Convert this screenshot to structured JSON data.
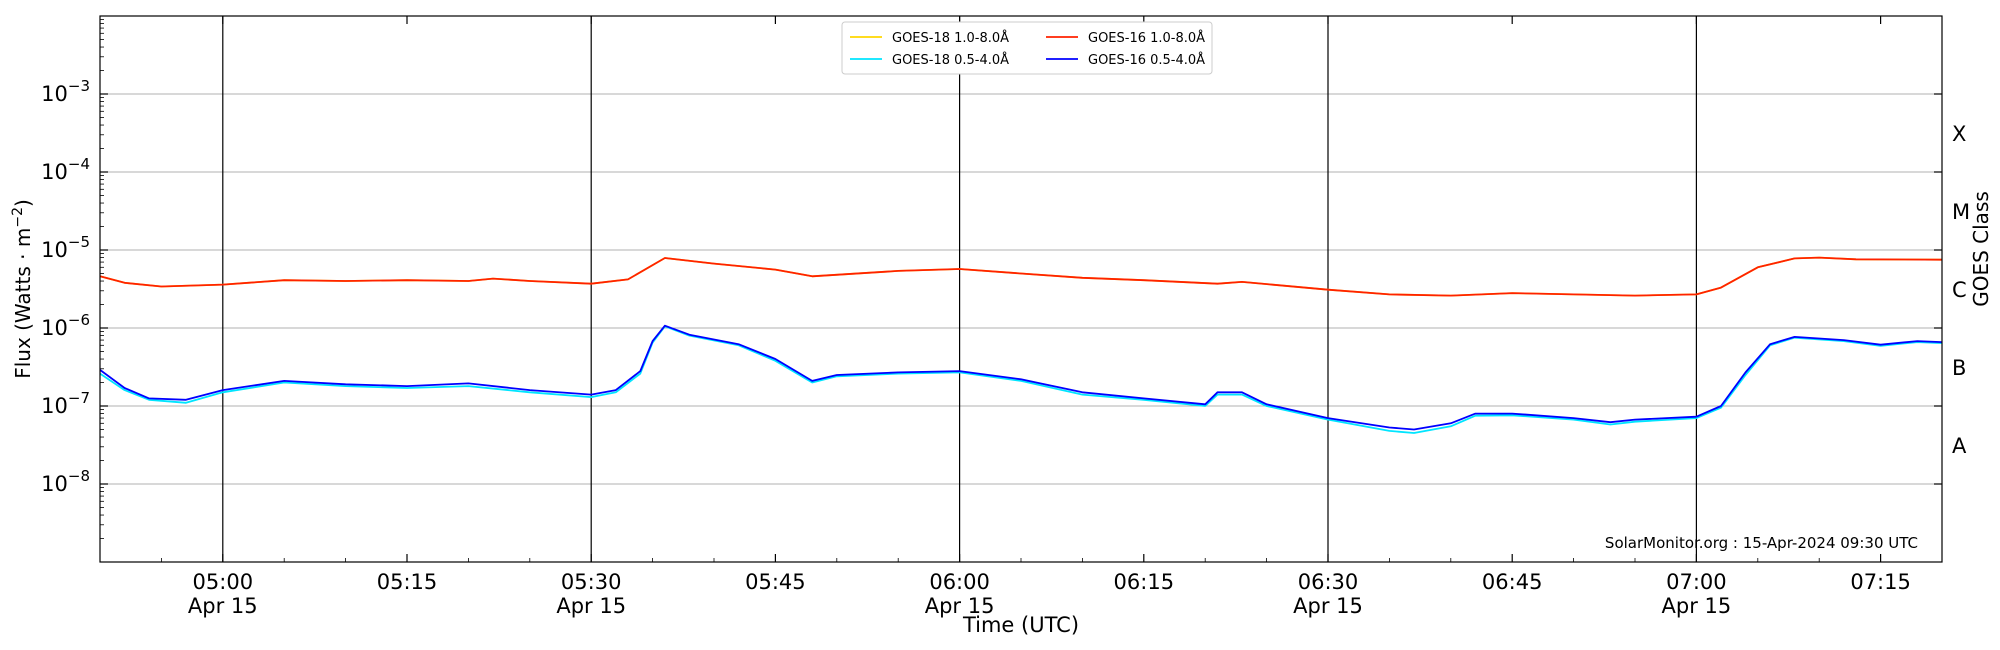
{
  "chart_data": {
    "type": "line",
    "xlabel": "Time (UTC)",
    "ylabel_main": "Flux (Watts · m",
    "ylabel_sup": "−2",
    "ylabel_close": ")",
    "right_label": "GOES Class",
    "x_range": [
      "04:50",
      "07:20"
    ],
    "y_scale": "log",
    "ylim": [
      1e-09,
      0.01
    ],
    "x_ticks": [
      {
        "time": "05:00",
        "label": "05:00",
        "sub": "Apr 15"
      },
      {
        "time": "05:15",
        "label": "05:15",
        "sub": ""
      },
      {
        "time": "05:30",
        "label": "05:30",
        "sub": "Apr 15"
      },
      {
        "time": "05:45",
        "label": "05:45",
        "sub": ""
      },
      {
        "time": "06:00",
        "label": "06:00",
        "sub": "Apr 15"
      },
      {
        "time": "06:15",
        "label": "06:15",
        "sub": ""
      },
      {
        "time": "06:30",
        "label": "06:30",
        "sub": "Apr 15"
      },
      {
        "time": "06:45",
        "label": "06:45",
        "sub": ""
      },
      {
        "time": "07:00",
        "label": "07:00",
        "sub": "Apr 15"
      },
      {
        "time": "07:15",
        "label": "07:15",
        "sub": ""
      }
    ],
    "y_ticks": [
      {
        "value": 0.001,
        "exp": "−3"
      },
      {
        "value": 0.0001,
        "exp": "−4"
      },
      {
        "value": 1e-05,
        "exp": "−5"
      },
      {
        "value": 1e-06,
        "exp": "−6"
      },
      {
        "value": 1e-07,
        "exp": "−7"
      },
      {
        "value": 1e-08,
        "exp": "−8"
      }
    ],
    "y_tick_base": "10",
    "vertical_lines": [
      "05:00",
      "05:30",
      "06:00",
      "06:30",
      "07:00"
    ],
    "goes_classes": [
      {
        "label": "X",
        "value": 0.000316
      },
      {
        "label": "M",
        "value": 3.16e-05
      },
      {
        "label": "C",
        "value": 3.16e-06
      },
      {
        "label": "B",
        "value": 3.16e-07
      },
      {
        "label": "A",
        "value": 3.16e-08
      }
    ],
    "grid": "horizontal",
    "legend_position": "top-center",
    "annotation": "SolarMonitor.org : 15-Apr-2024 09:30 UTC",
    "series": [
      {
        "name": "GOES-18 1.0-8.0Å",
        "color": "#ffd700",
        "points": [
          [
            "04:50",
            4.6e-06
          ],
          [
            "04:52",
            3.8e-06
          ],
          [
            "04:55",
            3.4e-06
          ],
          [
            "05:00",
            3.6e-06
          ],
          [
            "05:05",
            4.1e-06
          ],
          [
            "05:10",
            4e-06
          ],
          [
            "05:15",
            4.1e-06
          ],
          [
            "05:20",
            4e-06
          ],
          [
            "05:22",
            4.3e-06
          ],
          [
            "05:25",
            4e-06
          ],
          [
            "05:30",
            3.7e-06
          ],
          [
            "05:33",
            4.2e-06
          ],
          [
            "05:36",
            7.9e-06
          ],
          [
            "05:40",
            6.7e-06
          ],
          [
            "05:45",
            5.6e-06
          ],
          [
            "05:48",
            4.6e-06
          ],
          [
            "05:55",
            5.4e-06
          ],
          [
            "06:00",
            5.7e-06
          ],
          [
            "06:05",
            5e-06
          ],
          [
            "06:10",
            4.4e-06
          ],
          [
            "06:15",
            4.1e-06
          ],
          [
            "06:21",
            3.7e-06
          ],
          [
            "06:23",
            3.9e-06
          ],
          [
            "06:30",
            3.1e-06
          ],
          [
            "06:35",
            2.7e-06
          ],
          [
            "06:40",
            2.6e-06
          ],
          [
            "06:45",
            2.8e-06
          ],
          [
            "06:50",
            2.7e-06
          ],
          [
            "06:55",
            2.6e-06
          ],
          [
            "07:00",
            2.7e-06
          ],
          [
            "07:02",
            3.3e-06
          ],
          [
            "07:05",
            6e-06
          ],
          [
            "07:08",
            7.8e-06
          ],
          [
            "07:10",
            8e-06
          ],
          [
            "07:13",
            7.6e-06
          ],
          [
            "07:20",
            7.5e-06
          ]
        ]
      },
      {
        "name": "GOES-16 1.0-8.0Å",
        "color": "#ff2200",
        "points": [
          [
            "04:50",
            4.6e-06
          ],
          [
            "04:52",
            3.8e-06
          ],
          [
            "04:55",
            3.4e-06
          ],
          [
            "05:00",
            3.6e-06
          ],
          [
            "05:05",
            4.1e-06
          ],
          [
            "05:10",
            4e-06
          ],
          [
            "05:15",
            4.1e-06
          ],
          [
            "05:20",
            4e-06
          ],
          [
            "05:22",
            4.3e-06
          ],
          [
            "05:25",
            4e-06
          ],
          [
            "05:30",
            3.7e-06
          ],
          [
            "05:33",
            4.2e-06
          ],
          [
            "05:36",
            7.9e-06
          ],
          [
            "05:40",
            6.7e-06
          ],
          [
            "05:45",
            5.6e-06
          ],
          [
            "05:48",
            4.6e-06
          ],
          [
            "05:55",
            5.4e-06
          ],
          [
            "06:00",
            5.7e-06
          ],
          [
            "06:05",
            5e-06
          ],
          [
            "06:10",
            4.4e-06
          ],
          [
            "06:15",
            4.1e-06
          ],
          [
            "06:21",
            3.7e-06
          ],
          [
            "06:23",
            3.9e-06
          ],
          [
            "06:30",
            3.1e-06
          ],
          [
            "06:35",
            2.7e-06
          ],
          [
            "06:40",
            2.6e-06
          ],
          [
            "06:45",
            2.8e-06
          ],
          [
            "06:50",
            2.7e-06
          ],
          [
            "06:55",
            2.6e-06
          ],
          [
            "07:00",
            2.7e-06
          ],
          [
            "07:02",
            3.3e-06
          ],
          [
            "07:05",
            6e-06
          ],
          [
            "07:08",
            7.8e-06
          ],
          [
            "07:10",
            8e-06
          ],
          [
            "07:13",
            7.6e-06
          ],
          [
            "07:20",
            7.5e-06
          ]
        ]
      },
      {
        "name": "GOES-18 0.5-4.0Å",
        "color": "#00e5ff",
        "points": [
          [
            "04:50",
            2.6e-07
          ],
          [
            "04:52",
            1.6e-07
          ],
          [
            "04:54",
            1.2e-07
          ],
          [
            "04:57",
            1.1e-07
          ],
          [
            "05:00",
            1.5e-07
          ],
          [
            "05:05",
            2e-07
          ],
          [
            "05:10",
            1.8e-07
          ],
          [
            "05:15",
            1.7e-07
          ],
          [
            "05:20",
            1.8e-07
          ],
          [
            "05:25",
            1.5e-07
          ],
          [
            "05:30",
            1.3e-07
          ],
          [
            "05:32",
            1.5e-07
          ],
          [
            "05:34",
            2.6e-07
          ],
          [
            "05:35",
            6.5e-07
          ],
          [
            "05:36",
            1.05e-06
          ],
          [
            "05:38",
            8e-07
          ],
          [
            "05:42",
            6e-07
          ],
          [
            "05:45",
            3.8e-07
          ],
          [
            "05:48",
            2e-07
          ],
          [
            "05:50",
            2.4e-07
          ],
          [
            "05:55",
            2.6e-07
          ],
          [
            "06:00",
            2.7e-07
          ],
          [
            "06:05",
            2.1e-07
          ],
          [
            "06:10",
            1.4e-07
          ],
          [
            "06:15",
            1.2e-07
          ],
          [
            "06:20",
            1e-07
          ],
          [
            "06:21",
            1.4e-07
          ],
          [
            "06:23",
            1.4e-07
          ],
          [
            "06:25",
            1e-07
          ],
          [
            "06:30",
            6.7e-08
          ],
          [
            "06:35",
            4.8e-08
          ],
          [
            "06:37",
            4.5e-08
          ],
          [
            "06:40",
            5.5e-08
          ],
          [
            "06:42",
            7.5e-08
          ],
          [
            "06:45",
            7.6e-08
          ],
          [
            "06:50",
            6.7e-08
          ],
          [
            "06:53",
            5.8e-08
          ],
          [
            "06:55",
            6.3e-08
          ],
          [
            "07:00",
            7e-08
          ],
          [
            "07:02",
            9.5e-08
          ],
          [
            "07:04",
            2.5e-07
          ],
          [
            "07:06",
            6e-07
          ],
          [
            "07:08",
            7.5e-07
          ],
          [
            "07:12",
            6.8e-07
          ],
          [
            "07:15",
            5.9e-07
          ],
          [
            "07:18",
            6.6e-07
          ],
          [
            "07:20",
            6.4e-07
          ]
        ]
      },
      {
        "name": "GOES-16 0.5-4.0Å",
        "color": "#0000ff",
        "points": [
          [
            "04:50",
            2.9e-07
          ],
          [
            "04:52",
            1.7e-07
          ],
          [
            "04:54",
            1.25e-07
          ],
          [
            "04:57",
            1.2e-07
          ],
          [
            "05:00",
            1.6e-07
          ],
          [
            "05:05",
            2.1e-07
          ],
          [
            "05:10",
            1.9e-07
          ],
          [
            "05:15",
            1.8e-07
          ],
          [
            "05:20",
            1.95e-07
          ],
          [
            "05:25",
            1.6e-07
          ],
          [
            "05:30",
            1.4e-07
          ],
          [
            "05:32",
            1.6e-07
          ],
          [
            "05:34",
            2.8e-07
          ],
          [
            "05:35",
            6.8e-07
          ],
          [
            "05:36",
            1.07e-06
          ],
          [
            "05:38",
            8.2e-07
          ],
          [
            "05:42",
            6.2e-07
          ],
          [
            "05:45",
            4e-07
          ],
          [
            "05:48",
            2.1e-07
          ],
          [
            "05:50",
            2.5e-07
          ],
          [
            "05:55",
            2.7e-07
          ],
          [
            "06:00",
            2.8e-07
          ],
          [
            "06:05",
            2.2e-07
          ],
          [
            "06:10",
            1.5e-07
          ],
          [
            "06:15",
            1.25e-07
          ],
          [
            "06:20",
            1.05e-07
          ],
          [
            "06:21",
            1.5e-07
          ],
          [
            "06:23",
            1.5e-07
          ],
          [
            "06:25",
            1.05e-07
          ],
          [
            "06:30",
            7e-08
          ],
          [
            "06:35",
            5.3e-08
          ],
          [
            "06:37",
            5e-08
          ],
          [
            "06:40",
            6e-08
          ],
          [
            "06:42",
            8e-08
          ],
          [
            "06:45",
            8e-08
          ],
          [
            "06:50",
            7e-08
          ],
          [
            "06:53",
            6.2e-08
          ],
          [
            "06:55",
            6.7e-08
          ],
          [
            "07:00",
            7.3e-08
          ],
          [
            "07:02",
            1e-07
          ],
          [
            "07:04",
            2.7e-07
          ],
          [
            "07:06",
            6.2e-07
          ],
          [
            "07:08",
            7.7e-07
          ],
          [
            "07:12",
            7e-07
          ],
          [
            "07:15",
            6.1e-07
          ],
          [
            "07:18",
            6.8e-07
          ],
          [
            "07:20",
            6.6e-07
          ]
        ]
      }
    ]
  }
}
